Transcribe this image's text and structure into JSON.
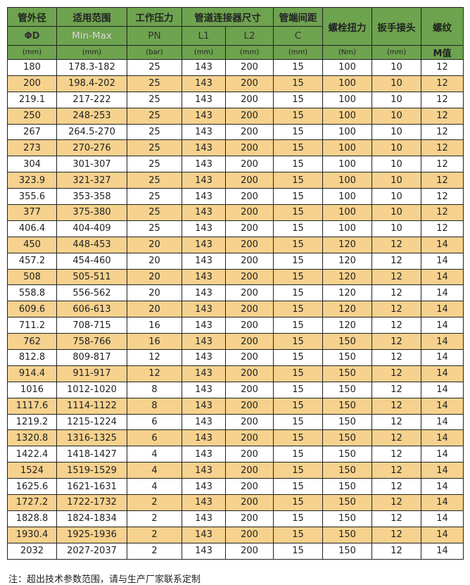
{
  "header": {
    "row1": [
      "管外径",
      "适用范围",
      "工作压力",
      "管道连接器尺寸",
      "管端间距",
      "螺栓扭力",
      "扳手接头",
      "螺纹"
    ],
    "row2": [
      "ΦD",
      "Min-Max",
      "PN",
      "L1",
      "L2",
      "C"
    ],
    "row3": [
      "(mm)",
      "(mm)",
      "(bar)",
      "(mm)",
      "(mm)",
      "(mm)",
      "(Nm)",
      "(mm)",
      "M值"
    ]
  },
  "rows": [
    [
      "180",
      "178.3-182",
      "25",
      "143",
      "200",
      "15",
      "100",
      "10",
      "12"
    ],
    [
      "200",
      "198.4-202",
      "25",
      "143",
      "200",
      "15",
      "100",
      "10",
      "12"
    ],
    [
      "219.1",
      "217-222",
      "25",
      "143",
      "200",
      "15",
      "100",
      "10",
      "12"
    ],
    [
      "250",
      "248-253",
      "25",
      "143",
      "200",
      "15",
      "100",
      "10",
      "12"
    ],
    [
      "267",
      "264.5-270",
      "25",
      "143",
      "200",
      "15",
      "100",
      "10",
      "12"
    ],
    [
      "273",
      "270-276",
      "25",
      "143",
      "200",
      "15",
      "100",
      "10",
      "12"
    ],
    [
      "304",
      "301-307",
      "25",
      "143",
      "200",
      "15",
      "100",
      "10",
      "12"
    ],
    [
      "323.9",
      "321-327",
      "25",
      "143",
      "200",
      "15",
      "100",
      "10",
      "12"
    ],
    [
      "355.6",
      "353-358",
      "25",
      "143",
      "200",
      "15",
      "100",
      "10",
      "12"
    ],
    [
      "377",
      "375-380",
      "25",
      "143",
      "200",
      "15",
      "100",
      "10",
      "12"
    ],
    [
      "406.4",
      "404-409",
      "25",
      "143",
      "200",
      "15",
      "100",
      "10",
      "12"
    ],
    [
      "450",
      "448-453",
      "20",
      "143",
      "200",
      "15",
      "120",
      "12",
      "14"
    ],
    [
      "457.2",
      "454-460",
      "20",
      "143",
      "200",
      "15",
      "120",
      "12",
      "14"
    ],
    [
      "508",
      "505-511",
      "20",
      "143",
      "200",
      "15",
      "120",
      "12",
      "14"
    ],
    [
      "558.8",
      "556-562",
      "20",
      "143",
      "200",
      "15",
      "120",
      "12",
      "14"
    ],
    [
      "609.6",
      "606-613",
      "20",
      "143",
      "200",
      "15",
      "120",
      "12",
      "14"
    ],
    [
      "711.2",
      "708-715",
      "16",
      "143",
      "200",
      "15",
      "120",
      "12",
      "14"
    ],
    [
      "762",
      "758-766",
      "16",
      "143",
      "200",
      "15",
      "150",
      "12",
      "14"
    ],
    [
      "812.8",
      "809-817",
      "12",
      "143",
      "200",
      "15",
      "150",
      "12",
      "14"
    ],
    [
      "914.4",
      "911-917",
      "12",
      "143",
      "200",
      "15",
      "150",
      "12",
      "14"
    ],
    [
      "1016",
      "1012-1020",
      "8",
      "143",
      "200",
      "15",
      "150",
      "12",
      "14"
    ],
    [
      "1117.6",
      "1114-1122",
      "8",
      "143",
      "200",
      "15",
      "150",
      "12",
      "14"
    ],
    [
      "1219.2",
      "1215-1224",
      "6",
      "143",
      "200",
      "15",
      "150",
      "12",
      "14"
    ],
    [
      "1320.8",
      "1316-1325",
      "6",
      "143",
      "200",
      "15",
      "150",
      "12",
      "14"
    ],
    [
      "1422.4",
      "1418-1427",
      "4",
      "143",
      "200",
      "15",
      "150",
      "12",
      "14"
    ],
    [
      "1524",
      "1519-1529",
      "4",
      "143",
      "200",
      "15",
      "150",
      "12",
      "14"
    ],
    [
      "1625.6",
      "1621-1631",
      "4",
      "143",
      "200",
      "15",
      "150",
      "12",
      "14"
    ],
    [
      "1727.2",
      "1722-1732",
      "2",
      "143",
      "200",
      "15",
      "150",
      "12",
      "14"
    ],
    [
      "1828.8",
      "1824-1834",
      "2",
      "143",
      "200",
      "15",
      "150",
      "12",
      "14"
    ],
    [
      "1930.4",
      "1925-1936",
      "2",
      "143",
      "200",
      "15",
      "150",
      "12",
      "14"
    ],
    [
      "2032",
      "2027-2037",
      "2",
      "143",
      "200",
      "15",
      "150",
      "12",
      "14"
    ]
  ],
  "note": "注：超出技术参数范围，请与生产厂家联系定制",
  "colors": {
    "header": "#6ea34f",
    "alt_row": "#f6d28e"
  }
}
